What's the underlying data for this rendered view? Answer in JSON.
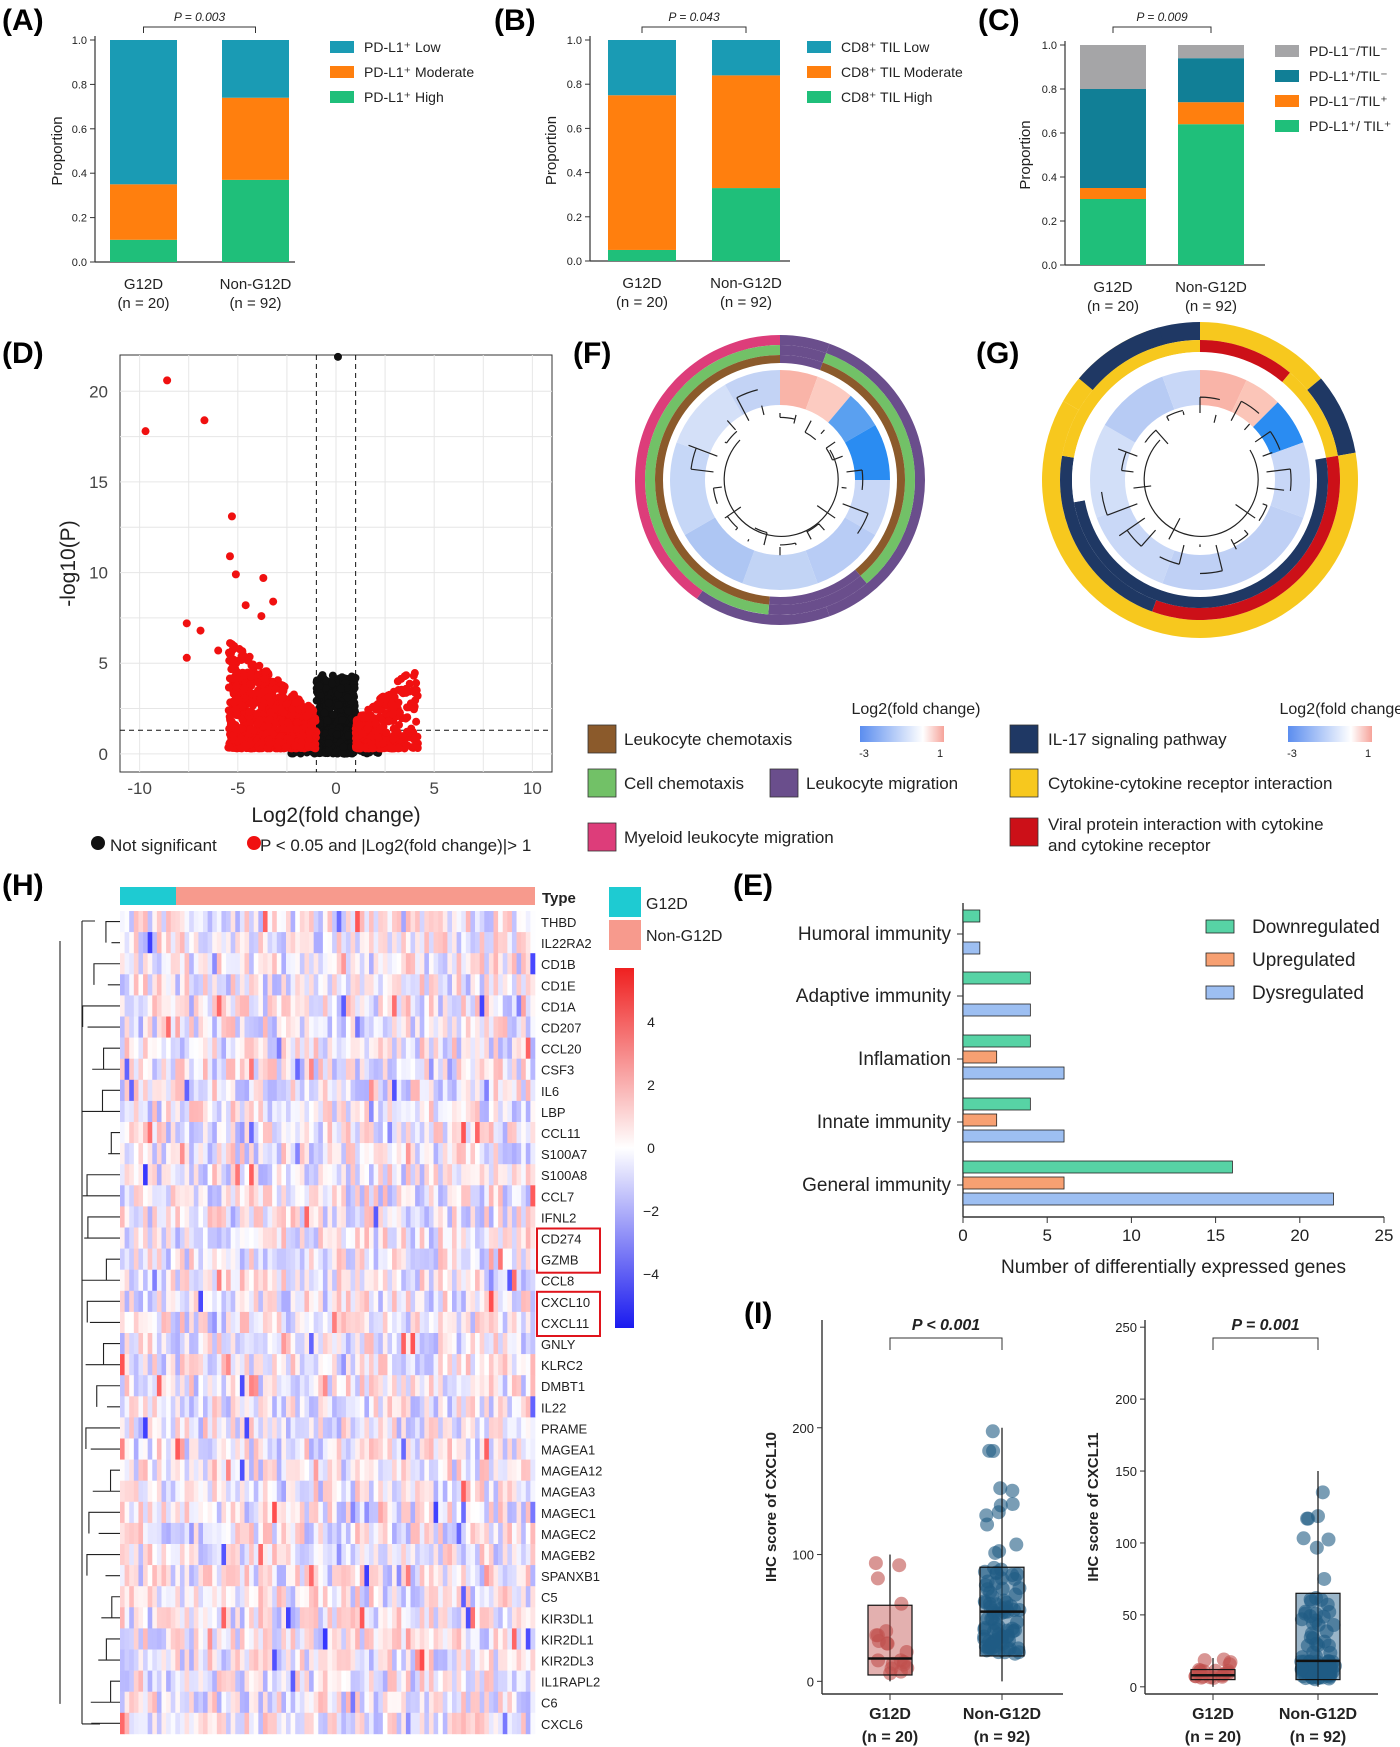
{
  "panel_labels": {
    "A": "(A)",
    "B": "(B)",
    "C": "(C)",
    "D": "(D)",
    "E": "(E)",
    "F": "(F)",
    "G": "(G)",
    "H": "(H)",
    "I": "(I)"
  },
  "chart_data": [
    {
      "id": "A",
      "type": "bar",
      "stacked": true,
      "ylabel": "Proportion",
      "ylim": [
        0,
        1.0
      ],
      "yticks": [
        "0.0",
        "0.2",
        "0.4",
        "0.6",
        "0.8",
        "1.0"
      ],
      "categories": [
        "G12D",
        "Non-G12D"
      ],
      "category_n": [
        "(n = 20)",
        "(n = 92)"
      ],
      "pvalue": "P = 0.003",
      "series": [
        {
          "name": "PD-L1⁺ High",
          "color": "#1fbf7a",
          "values": [
            0.1,
            0.37
          ]
        },
        {
          "name": "PD-L1⁺ Moderate",
          "color": "#ff7f0e",
          "values": [
            0.25,
            0.37
          ]
        },
        {
          "name": "PD-L1⁺ Low",
          "color": "#1a9bb4",
          "values": [
            0.65,
            0.26
          ]
        }
      ]
    },
    {
      "id": "B",
      "type": "bar",
      "stacked": true,
      "ylabel": "Proportion",
      "ylim": [
        0,
        1.0
      ],
      "yticks": [
        "0.0",
        "0.2",
        "0.4",
        "0.6",
        "0.8",
        "1.0"
      ],
      "categories": [
        "G12D",
        "Non-G12D"
      ],
      "category_n": [
        "(n = 20)",
        "(n = 92)"
      ],
      "pvalue": "P = 0.043",
      "series": [
        {
          "name": "CD8⁺ TIL High",
          "color": "#1fbf7a",
          "values": [
            0.05,
            0.33
          ]
        },
        {
          "name": "CD8⁺ TIL Moderate",
          "color": "#ff7f0e",
          "values": [
            0.7,
            0.51
          ]
        },
        {
          "name": "CD8⁺ TIL Low",
          "color": "#1a9bb4",
          "values": [
            0.25,
            0.16
          ]
        }
      ]
    },
    {
      "id": "C",
      "type": "bar",
      "stacked": true,
      "ylabel": "Proportion",
      "ylim": [
        0,
        1.0
      ],
      "yticks": [
        "0.0",
        "0.2",
        "0.4",
        "0.6",
        "0.8",
        "1.0"
      ],
      "categories": [
        "G12D",
        "Non-G12D"
      ],
      "category_n": [
        "(n = 20)",
        "(n = 92)"
      ],
      "pvalue": "P = 0.009",
      "series": [
        {
          "name": "PD-L1⁺/ TIL⁺",
          "color": "#1fbf7a",
          "values": [
            0.3,
            0.64
          ]
        },
        {
          "name": "PD-L1⁻/TIL⁺",
          "color": "#ff7f0e",
          "values": [
            0.05,
            0.1
          ]
        },
        {
          "name": "PD-L1⁺/TIL⁻",
          "color": "#117f96",
          "values": [
            0.45,
            0.2
          ]
        },
        {
          "name": "PD-L1⁻/TIL⁻",
          "color": "#a5a5a7",
          "values": [
            0.2,
            0.06
          ]
        }
      ]
    },
    {
      "id": "D",
      "type": "scatter",
      "xlabel": "Log2(fold change)",
      "ylabel": "-log10(P)",
      "xlim": [
        -11,
        11
      ],
      "ylim": [
        -1,
        22
      ],
      "xticks": [
        -10,
        -5,
        0,
        5,
        10
      ],
      "yticks": [
        0,
        5,
        10,
        15,
        20
      ],
      "thresholds": {
        "x": [
          -1,
          1
        ],
        "y": 1.3
      },
      "legend": [
        "Not significant",
        "P < 0.05 and |Log2(fold change)|> 1"
      ],
      "highlight_points": [
        [
          -9.7,
          17.8
        ],
        [
          -8.6,
          20.6
        ],
        [
          -6.7,
          18.4
        ],
        [
          -5.3,
          13.1
        ],
        [
          -5.4,
          10.9
        ],
        [
          -5.1,
          9.9
        ],
        [
          -7.6,
          7.2
        ],
        [
          -3.7,
          9.7
        ],
        [
          -3.2,
          8.4
        ],
        [
          -6.9,
          6.8
        ],
        [
          -4.6,
          8.2
        ],
        [
          -3.8,
          7.6
        ],
        [
          -6.0,
          5.7
        ],
        [
          -7.6,
          5.3
        ],
        [
          0.1,
          21.9
        ]
      ]
    },
    {
      "id": "E",
      "type": "bar",
      "orientation": "horizontal",
      "xlabel": "Number of differentially expressed genes",
      "xlim": [
        0,
        25
      ],
      "xticks": [
        0,
        5,
        10,
        15,
        20,
        25
      ],
      "categories": [
        "Humoral immunity",
        "Adaptive immunity",
        "Inflamation",
        "Innate immunity",
        "General immunity"
      ],
      "series": [
        {
          "name": "Downregulated",
          "color": "#57d3a5",
          "values": [
            1,
            4,
            4,
            4,
            16
          ]
        },
        {
          "name": "Upregulated",
          "color": "#f7a072",
          "values": [
            0,
            0,
            2,
            2,
            6
          ]
        },
        {
          "name": "Dysregulated",
          "color": "#9dbff2",
          "values": [
            1,
            4,
            6,
            6,
            22
          ]
        }
      ]
    },
    {
      "id": "F",
      "type": "circular_dendrogram_heatmap",
      "legend_title": "Log2(fold change)",
      "scale_min": "-3",
      "scale_max": "1",
      "categories": [
        {
          "name": "Leukocyte chemotaxis",
          "color": "#8b5a2b"
        },
        {
          "name": "Cell chemotaxis",
          "color": "#72c167"
        },
        {
          "name": "Leukocyte migration",
          "color": "#6a4e8c"
        },
        {
          "name": "Myeloid leukocyte migration",
          "color": "#dd3d7a"
        }
      ]
    },
    {
      "id": "G",
      "type": "circular_dendrogram_heatmap",
      "legend_title": "Log2(fold change)",
      "scale_min": "-3",
      "scale_max": "1",
      "categories": [
        {
          "name": "IL-17 signaling pathway",
          "color": "#1f3864"
        },
        {
          "name": "Cytokine-cytokine receptor interaction",
          "color": "#f7c81e"
        },
        {
          "name": "Viral protein interaction with cytokine and cytokine receptor",
          "color": "#cc1018"
        }
      ]
    },
    {
      "id": "H",
      "type": "heatmap",
      "annotation_title": "Type",
      "groups": [
        {
          "name": "G12D",
          "color": "#1ecbd2"
        },
        {
          "name": "Non-G12D",
          "color": "#f79a8d"
        }
      ],
      "colorbar_ticks": [
        "4",
        "2",
        "0",
        "−2",
        "−4"
      ],
      "genes": [
        "THBD",
        "IL22RA2",
        "CD1B",
        "CD1E",
        "CD1A",
        "CD207",
        "CCL20",
        "CSF3",
        "IL6",
        "LBP",
        "CCL11",
        "S100A7",
        "S100A8",
        "CCL7",
        "IFNL2",
        "CD274",
        "GZMB",
        "CCL8",
        "CXCL10",
        "CXCL11",
        "GNLY",
        "KLRC2",
        "DMBT1",
        "IL22",
        "PRAME",
        "MAGEA1",
        "MAGEA12",
        "MAGEA3",
        "MAGEC1",
        "MAGEC2",
        "MAGEB2",
        "SPANXB1",
        "C5",
        "KIR3DL1",
        "KIR2DL1",
        "KIR2DL3",
        "IL1RAPL2",
        "C6",
        "CXCL6"
      ],
      "boxed_genes": [
        [
          "CD274",
          "GZMB"
        ],
        [
          "CXCL10",
          "CXCL11"
        ]
      ]
    },
    {
      "id": "I1",
      "type": "box",
      "ylabel": "IHC score of CXCL10",
      "ylim": [
        -10,
        285
      ],
      "yticks": [
        0,
        100,
        200
      ],
      "categories": [
        "G12D",
        "Non-G12D"
      ],
      "category_n": [
        "(n = 20)",
        "(n = 92)"
      ],
      "pvalue": "P < 0.001",
      "colors": [
        "#c0504d",
        "#1f5b84"
      ],
      "box_stats": [
        {
          "min": 0,
          "q1": 5,
          "median": 18,
          "q3": 60,
          "max": 100
        },
        {
          "min": 0,
          "q1": 20,
          "median": 55,
          "q3": 90,
          "max": 200
        }
      ]
    },
    {
      "id": "I2",
      "type": "box",
      "ylabel": "IHC score of CXCL11",
      "ylim": [
        -5,
        255
      ],
      "yticks": [
        0,
        50,
        100,
        150,
        200,
        250
      ],
      "categories": [
        "G12D",
        "Non-G12D"
      ],
      "category_n": [
        "(n = 20)",
        "(n = 92)"
      ],
      "pvalue": "P = 0.001",
      "colors": [
        "#c0504d",
        "#1f5b84"
      ],
      "box_stats": [
        {
          "min": 0,
          "q1": 5,
          "median": 8,
          "q3": 12,
          "max": 20
        },
        {
          "min": 0,
          "q1": 5,
          "median": 18,
          "q3": 65,
          "max": 150
        }
      ]
    }
  ]
}
